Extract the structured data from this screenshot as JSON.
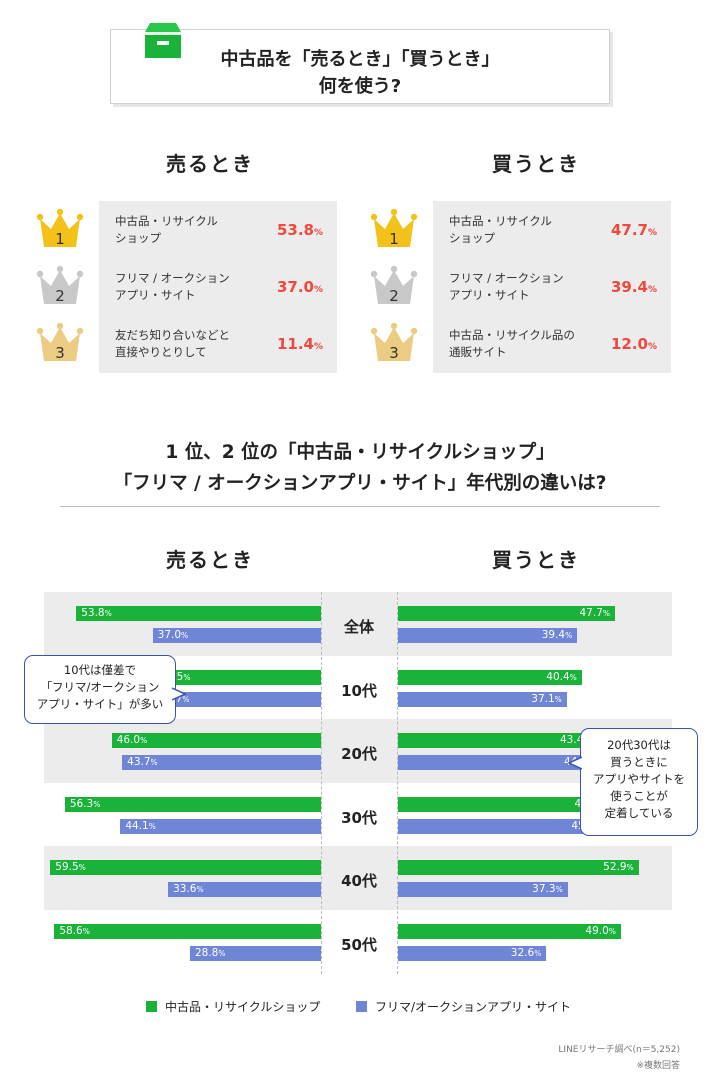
{
  "header": {
    "title_line1": "中古品を「売るとき」「買うとき」",
    "title_line2": "何を使う?"
  },
  "sell": {
    "heading": "売るとき",
    "ranks": [
      {
        "rank": "1",
        "label_l1": "中古品・リサイクル",
        "label_l2": "ショップ",
        "pct": "53.8",
        "unit": "%"
      },
      {
        "rank": "2",
        "label_l1": "フリマ / オークション",
        "label_l2": "アプリ・サイト",
        "pct": "37.0",
        "unit": "%"
      },
      {
        "rank": "3",
        "label_l1": "友だち知り合いなどと",
        "label_l2": "直接やりとりして",
        "pct": "11.4",
        "unit": "%"
      }
    ]
  },
  "buy": {
    "heading": "買うとき",
    "ranks": [
      {
        "rank": "1",
        "label_l1": "中古品・リサイクル",
        "label_l2": "ショップ",
        "pct": "47.7",
        "unit": "%"
      },
      {
        "rank": "2",
        "label_l1": "フリマ / オークション",
        "label_l2": "アプリ・サイト",
        "pct": "39.4",
        "unit": "%"
      },
      {
        "rank": "3",
        "label_l1": "中古品・リサイクル品の",
        "label_l2": "通販サイト",
        "pct": "12.0",
        "unit": "%"
      }
    ]
  },
  "age_section": {
    "title_line1": "1 位、2 位の「中古品・リサイクルショップ」",
    "title_line2": "「フリマ / オークションアプリ・サイト」年代別の違いは?",
    "sell_heading": "売るとき",
    "buy_heading": "買うとき"
  },
  "callouts": {
    "left": [
      "10代は僅差で",
      "「フリマ/オークション",
      "アプリ・サイト」が多い"
    ],
    "right": [
      "20代30代は",
      "買うときに",
      "アプリやサイトを",
      "使うことが",
      "定着している"
    ]
  },
  "legend": {
    "green_label": "中古品・リサイクルショップ",
    "blue_label": "フリマ/オークションアプリ・サイト"
  },
  "footnotes": {
    "source": "LINEリサーチ調べ(n＝5,252)",
    "note": "※複数回答"
  },
  "colors": {
    "green": "#1ab33a",
    "blue": "#6f85d6",
    "accent_red": "#f0483c",
    "gold": "#f2c21b",
    "silver": "#c8c8c8",
    "bronze": "#eccb83"
  },
  "chart_data": {
    "type": "bar",
    "orientation": "horizontal, back-to-back",
    "categories": [
      "全体",
      "10代",
      "20代",
      "30代",
      "40代",
      "50代"
    ],
    "unit": "%",
    "panels": [
      {
        "name": "売るとき",
        "series": [
          {
            "name": "中古品・リサイクルショップ",
            "values": [
              53.8,
              36.5,
              46.0,
              56.3,
              59.5,
              58.6
            ]
          },
          {
            "name": "フリマ/オークションアプリ・サイト",
            "values": [
              37.0,
              36.7,
              43.7,
              44.1,
              33.6,
              28.8
            ]
          }
        ]
      },
      {
        "name": "買うとき",
        "series": [
          {
            "name": "中古品・リサイクルショップ",
            "values": [
              47.7,
              40.4,
              43.4,
              46.6,
              52.9,
              49.0
            ]
          },
          {
            "name": "フリマ/オークションアプリ・サイト",
            "values": [
              39.4,
              37.1,
              44.3,
              45.9,
              37.3,
              32.6
            ]
          }
        ]
      }
    ],
    "legend_placement": "bottom",
    "grid": false
  }
}
